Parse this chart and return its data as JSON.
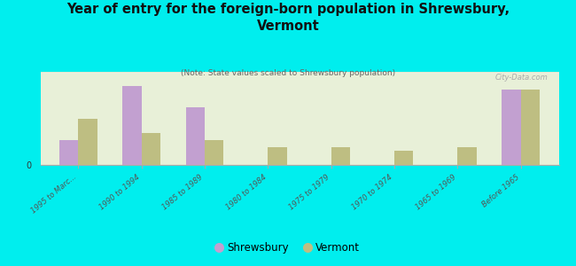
{
  "title": "Year of entry for the foreign-born population in Shrewsbury,\nVermont",
  "subtitle": "(Note: State values scaled to Shrewsbury population)",
  "categories": [
    "1995 to Marc...",
    "1990 to 1994",
    "1985 to 1989",
    "1980 to 1984",
    "1975 to 1979",
    "1970 to 1974",
    "1965 to 1969",
    "Before 1965"
  ],
  "shrewsbury": [
    7,
    22,
    16,
    0,
    0,
    0,
    0,
    21
  ],
  "vermont": [
    13,
    9,
    7,
    5,
    5,
    4,
    5,
    21
  ],
  "shrewsbury_color": "#c2a0d0",
  "vermont_color": "#bebe82",
  "background_color": "#00eeee",
  "plot_bg_color": "#e8efd8",
  "bar_width": 0.3,
  "ylim": [
    0,
    26
  ],
  "legend_labels": [
    "Shrewsbury",
    "Vermont"
  ],
  "watermark": "City-Data.com"
}
